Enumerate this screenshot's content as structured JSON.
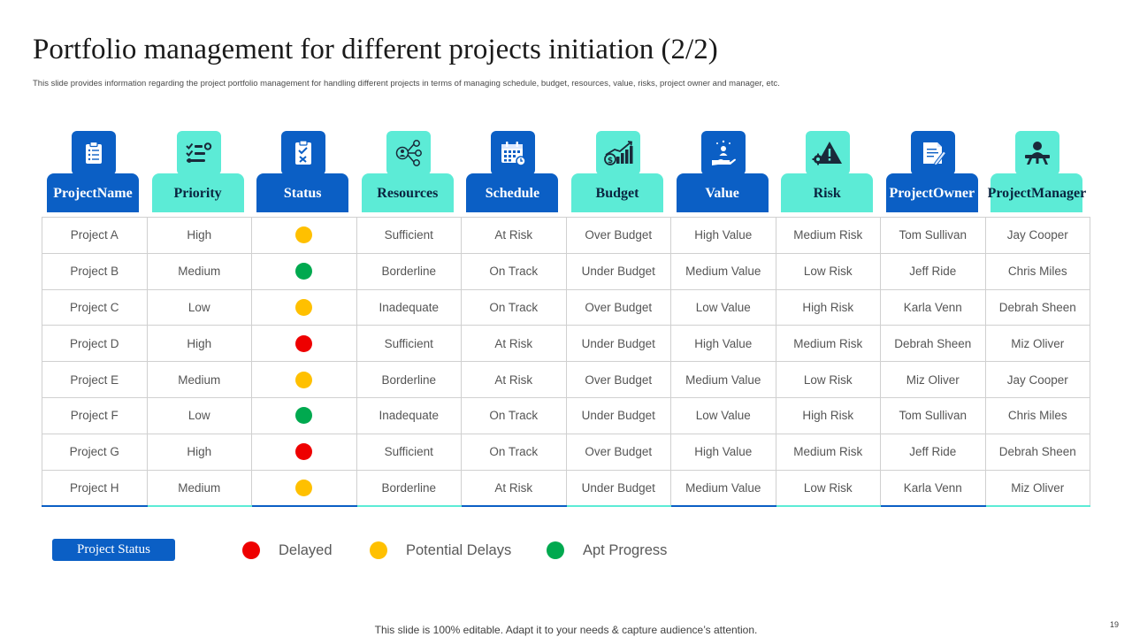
{
  "slide": {
    "title": "Portfolio management for different projects initiation (2/2)",
    "subtitle": "This slide provides information regarding the project portfolio management  for handling different projects in terms of managing  schedule, budget, resources, value, risks, project owner and manager, etc.",
    "footer": "This slide is 100% editable. Adapt it to your needs & capture audience’s attention.",
    "page_number": "19"
  },
  "colors": {
    "dark_blue": "#0b5fc5",
    "aqua": "#5cebd6",
    "red": "#ee0000",
    "amber": "#ffc000",
    "green": "#00a94f"
  },
  "columns": [
    {
      "line1": "Project",
      "line2": "Name",
      "icon": "clipboard-list-icon",
      "style": "dark"
    },
    {
      "line1": "Priority",
      "line2": "",
      "icon": "priority-list-icon",
      "style": "light"
    },
    {
      "line1": "Status",
      "line2": "",
      "icon": "checklist-clipboard-icon",
      "style": "dark"
    },
    {
      "line1": "Resources",
      "line2": "",
      "icon": "network-resources-icon",
      "style": "light"
    },
    {
      "line1": "Schedule",
      "line2": "",
      "icon": "calendar-icon",
      "style": "dark"
    },
    {
      "line1": "Budget",
      "line2": "",
      "icon": "money-growth-chart-icon",
      "style": "light"
    },
    {
      "line1": "Value",
      "line2": "",
      "icon": "hand-value-icon",
      "style": "dark"
    },
    {
      "line1": "Risk",
      "line2": "",
      "icon": "warning-gear-icon",
      "style": "light"
    },
    {
      "line1": "Project",
      "line2": "Owner",
      "icon": "document-pen-icon",
      "style": "dark"
    },
    {
      "line1": "Project",
      "line2": "Manager",
      "icon": "manager-desk-icon",
      "style": "light"
    }
  ],
  "rows": [
    {
      "name": "Project A",
      "priority": "High",
      "status": "amber",
      "resources": "Sufficient",
      "schedule": "At Risk",
      "budget": "Over Budget",
      "value": "High Value",
      "risk": "Medium Risk",
      "owner": "Tom Sullivan",
      "manager": "Jay Cooper"
    },
    {
      "name": "Project B",
      "priority": "Medium",
      "status": "green",
      "resources": "Borderline",
      "schedule": "On Track",
      "budget": "Under Budget",
      "value": "Medium Value",
      "risk": "Low Risk",
      "owner": "Jeff Ride",
      "manager": "Chris Miles"
    },
    {
      "name": "Project C",
      "priority": "Low",
      "status": "amber",
      "resources": "Inadequate",
      "schedule": "On Track",
      "budget": "Over Budget",
      "value": "Low Value",
      "risk": "High Risk",
      "owner": "Karla Venn",
      "manager": "Debrah Sheen"
    },
    {
      "name": "Project D",
      "priority": "High",
      "status": "red",
      "resources": "Sufficient",
      "schedule": "At Risk",
      "budget": "Under Budget",
      "value": "High Value",
      "risk": "Medium Risk",
      "owner": "Debrah Sheen",
      "manager": "Miz Oliver"
    },
    {
      "name": "Project E",
      "priority": "Medium",
      "status": "amber",
      "resources": "Borderline",
      "schedule": "At Risk",
      "budget": "Over Budget",
      "value": "Medium Value",
      "risk": "Low Risk",
      "owner": "Miz Oliver",
      "manager": "Jay Cooper"
    },
    {
      "name": "Project F",
      "priority": "Low",
      "status": "green",
      "resources": "Inadequate",
      "schedule": "On Track",
      "budget": "Under Budget",
      "value": "Low Value",
      "risk": "High Risk",
      "owner": "Tom Sullivan",
      "manager": "Chris Miles"
    },
    {
      "name": "Project G",
      "priority": "High",
      "status": "red",
      "resources": "Sufficient",
      "schedule": "On Track",
      "budget": "Over Budget",
      "value": "High Value",
      "risk": "Medium Risk",
      "owner": "Jeff Ride",
      "manager": "Debrah Sheen"
    },
    {
      "name": "Project H",
      "priority": "Medium",
      "status": "amber",
      "resources": "Borderline",
      "schedule": "At Risk",
      "budget": "Under Budget",
      "value": "Medium Value",
      "risk": "Low Risk",
      "owner": "Karla Venn",
      "manager": "Miz Oliver"
    }
  ],
  "legend": {
    "title": "Project Status",
    "items": [
      {
        "label": "Delayed",
        "color": "red"
      },
      {
        "label": "Potential Delays",
        "color": "amber"
      },
      {
        "label": "Apt Progress",
        "color": "green"
      }
    ]
  }
}
